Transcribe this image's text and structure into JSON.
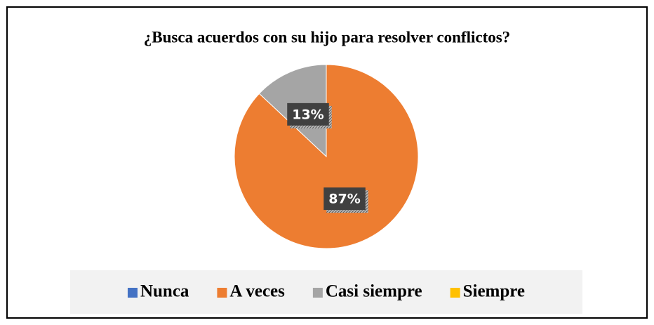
{
  "chart_data": {
    "type": "pie",
    "title": "¿Busca acuerdos con su hijo para resolver conflictos?",
    "categories": [
      "Nunca",
      "A veces",
      "Casi siempre",
      "Siempre"
    ],
    "values": [
      0,
      87,
      13,
      0
    ],
    "value_labels": [
      null,
      "87%",
      "13%",
      null
    ],
    "colors": [
      "#4472c4",
      "#ed7d31",
      "#a5a5a5",
      "#ffc000"
    ],
    "legend": "bottom"
  }
}
